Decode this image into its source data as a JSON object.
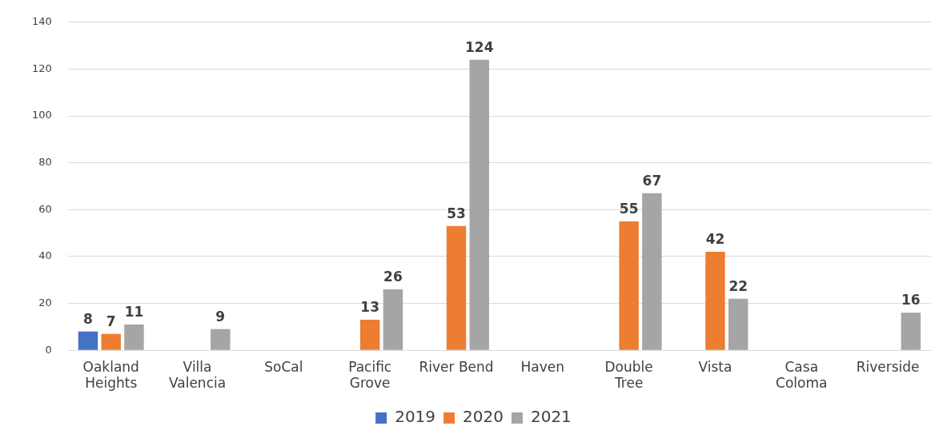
{
  "chart_data": {
    "type": "bar",
    "categories": [
      "Oakland Heights",
      "Villa Valencia",
      "SoCal",
      "Pacific Grove",
      "River Bend",
      "Haven",
      "Double Tree",
      "Vista",
      "Casa Coloma",
      "Riverside"
    ],
    "series": [
      {
        "name": "2019",
        "color": "#4472c4",
        "values": [
          8,
          null,
          null,
          null,
          null,
          null,
          null,
          null,
          null,
          null
        ]
      },
      {
        "name": "2020",
        "color": "#ed7d31",
        "values": [
          7,
          null,
          null,
          13,
          53,
          null,
          55,
          42,
          null,
          null
        ]
      },
      {
        "name": "2021",
        "color": "#a5a5a5",
        "values": [
          11,
          9,
          null,
          26,
          124,
          null,
          67,
          22,
          null,
          16
        ]
      }
    ],
    "ylim": [
      0,
      140
    ],
    "yticks": [
      0,
      20,
      40,
      60,
      80,
      100,
      120,
      140
    ],
    "grid": "y",
    "legend": "bottom",
    "data_labels": true
  }
}
